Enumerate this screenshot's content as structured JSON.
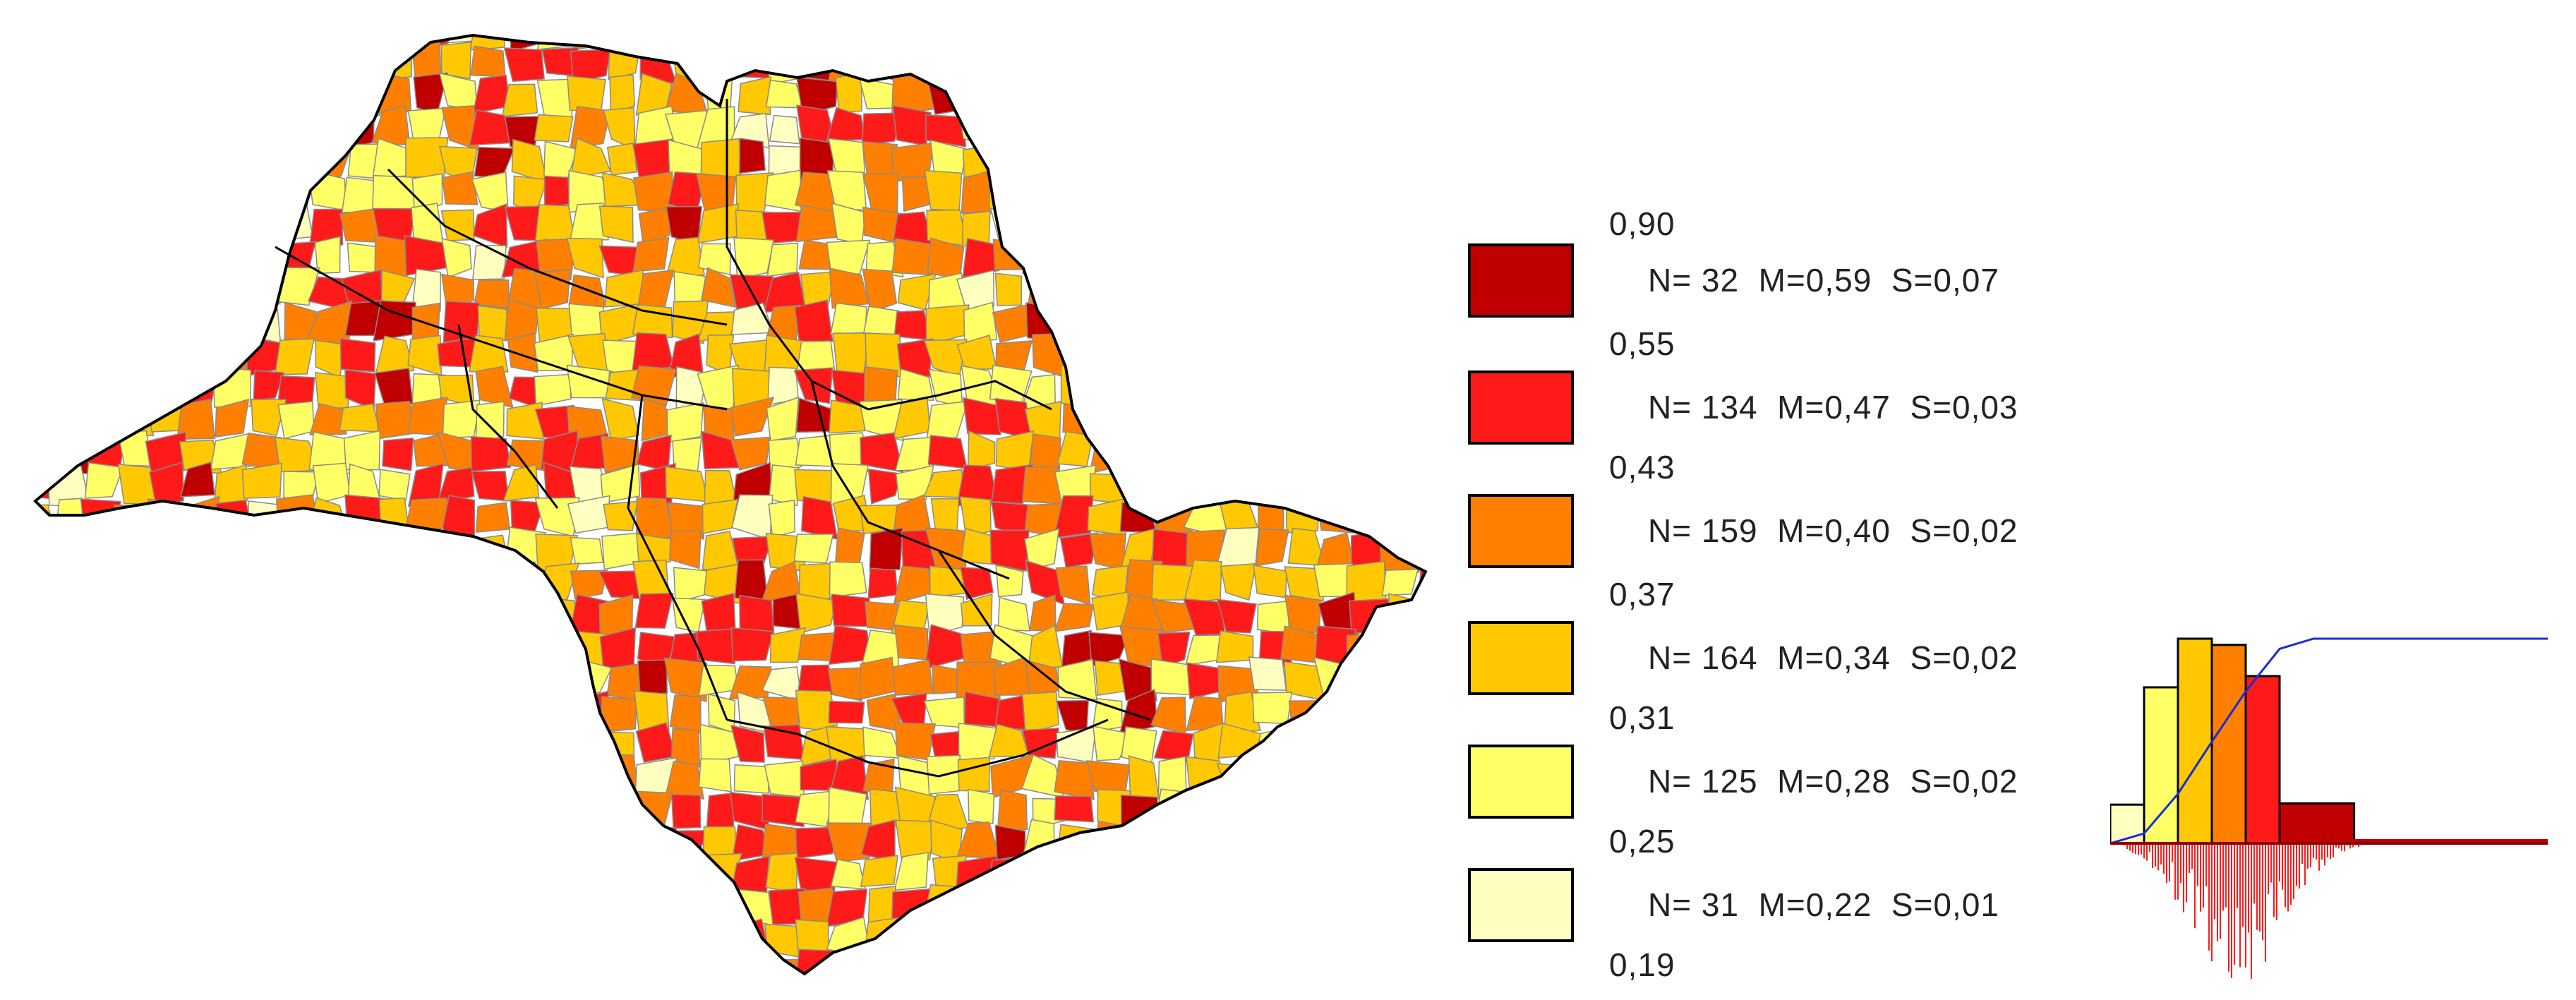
{
  "map": {
    "region": "state-municipalities",
    "fill_by_class": true
  },
  "legend": {
    "breaks": [
      "0,90",
      "0,55",
      "0,43",
      "0,37",
      "0,31",
      "0,25",
      "0,19"
    ],
    "classes": [
      {
        "color": "#c00000",
        "stats": "N= 32  M=0,59  S=0,07"
      },
      {
        "color": "#ff1a1a",
        "stats": "N= 134  M=0,47  S=0,03"
      },
      {
        "color": "#ff8000",
        "stats": "N= 159  M=0,40  S=0,02"
      },
      {
        "color": "#ffc800",
        "stats": "N= 164  M=0,34  S=0,02"
      },
      {
        "color": "#ffff66",
        "stats": "N= 125  M=0,28  S=0,02"
      },
      {
        "color": "#ffffbf",
        "stats": "N= 31  M=0,22  S=0,01"
      }
    ]
  },
  "chart_data": {
    "type": "bar",
    "categories": [
      "0,19-0,25",
      "0,25-0,31",
      "0,31-0,37",
      "0,37-0,43",
      "0,43-0,55",
      "0,55-0,90"
    ],
    "values": [
      31,
      125,
      164,
      159,
      134,
      32
    ],
    "colors": [
      "#ffffbf",
      "#ffff66",
      "#ffc800",
      "#ff8000",
      "#ff1a1a",
      "#c00000"
    ],
    "cumulative_line_color": "#1a2bd9",
    "title": "",
    "xlabel": "",
    "ylabel": ""
  }
}
